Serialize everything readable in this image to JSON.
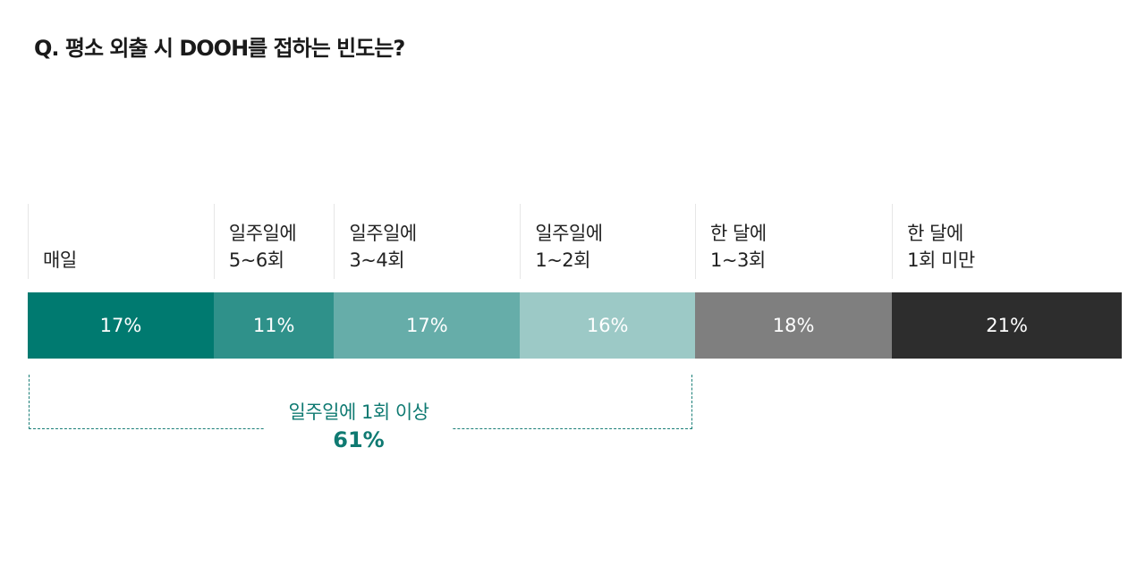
{
  "title": "Q. 평소 외출 시 DOOH를 접하는 빈도는?",
  "chart_data": {
    "type": "bar",
    "stacked": true,
    "orientation": "horizontal",
    "categories": [
      "매일",
      "일주일에\n5~6회",
      "일주일에\n3~4회",
      "일주일에\n1~2회",
      "한 달에\n1~3회",
      "한 달에\n1회 미만"
    ],
    "values": [
      17,
      11,
      17,
      16,
      18,
      21
    ],
    "value_labels": [
      "17%",
      "11%",
      "17%",
      "16%",
      "18%",
      "21%"
    ],
    "colors": [
      "#007a70",
      "#2f918a",
      "#66ada9",
      "#9cc9c6",
      "#7f7f7f",
      "#2d2d2d"
    ],
    "annotation": {
      "label": "일주일에 1회 이상",
      "value": "61%",
      "color": "#0f7a72",
      "span_categories": [
        0,
        3
      ]
    }
  }
}
